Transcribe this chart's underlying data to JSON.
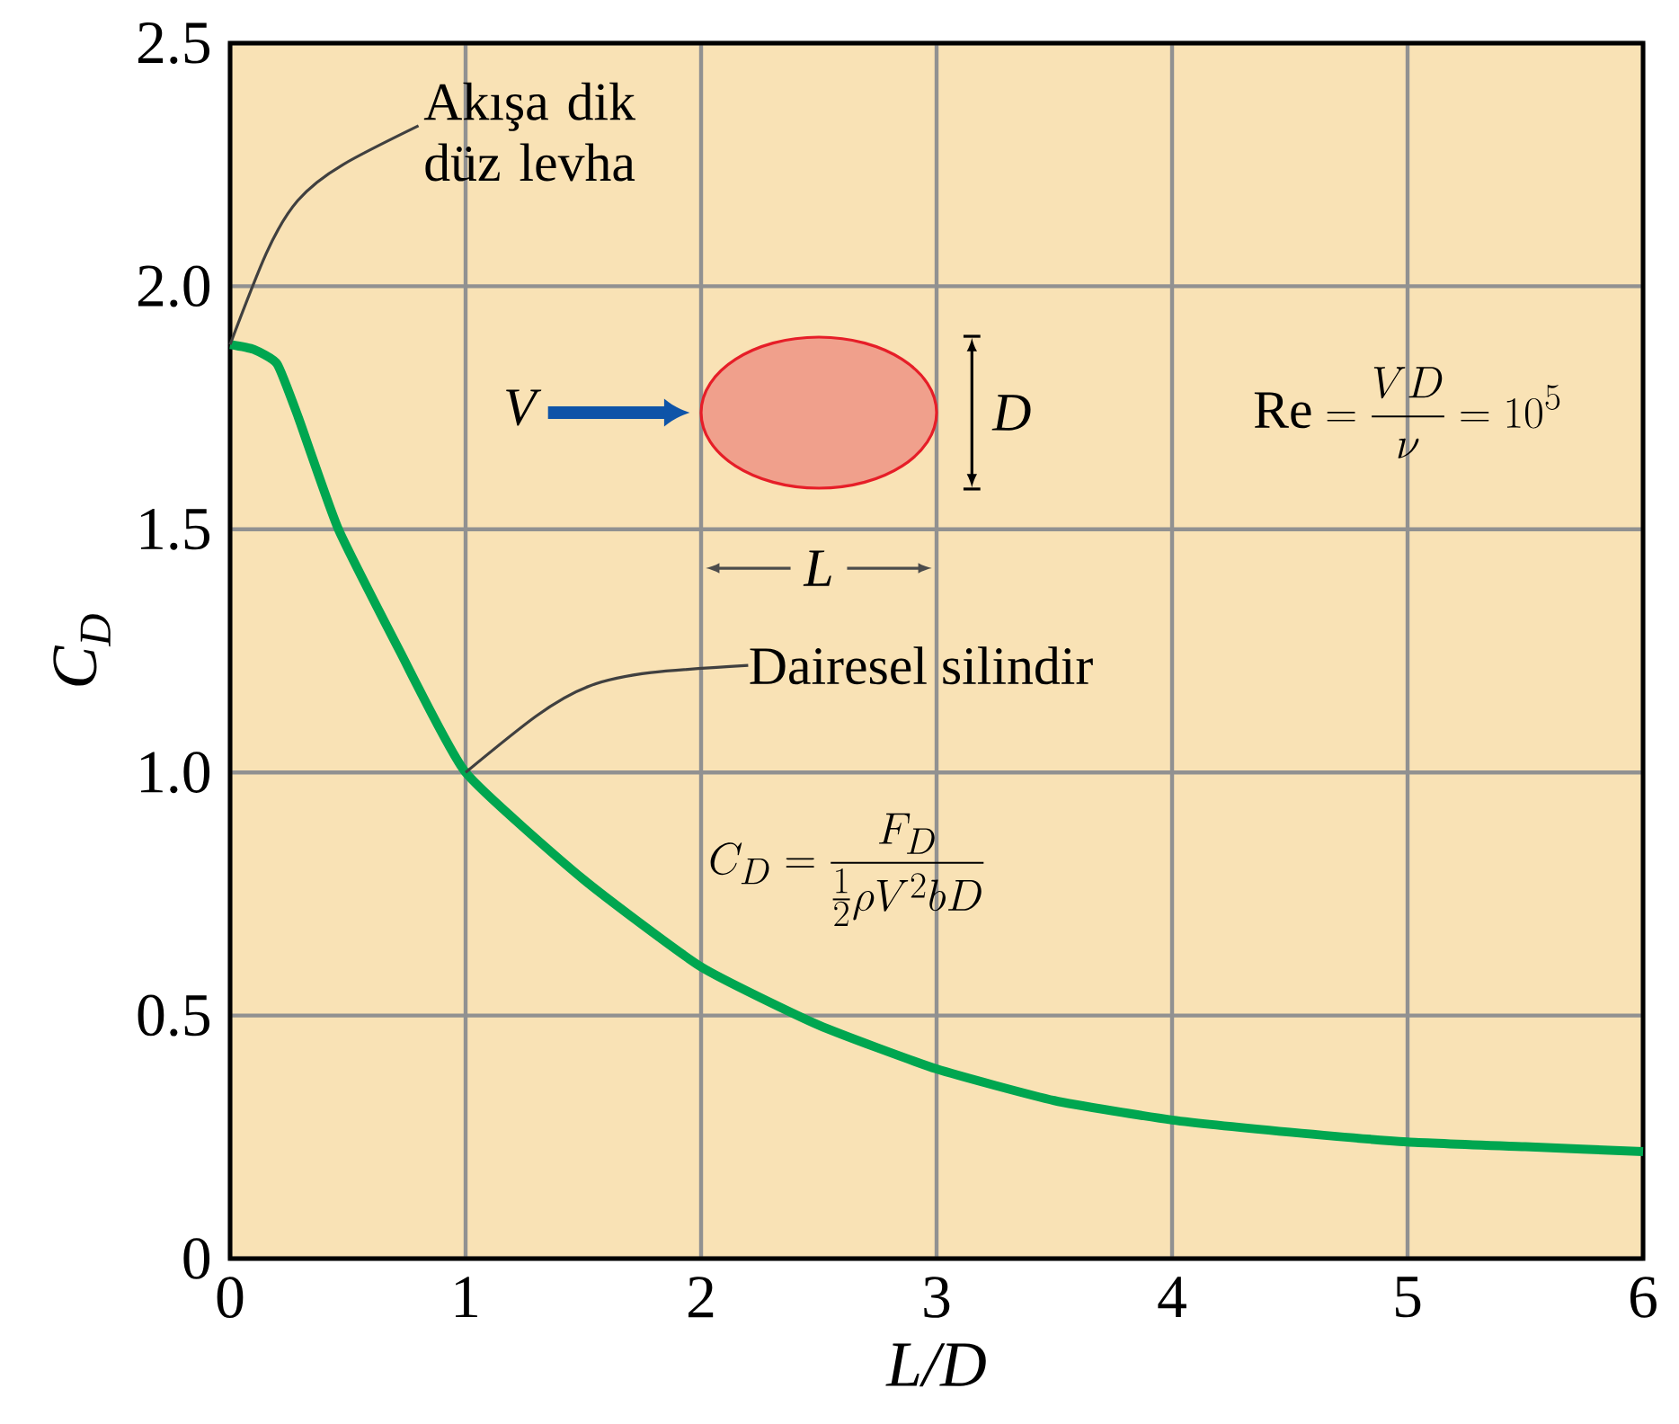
{
  "chart_data": {
    "type": "line",
    "xlabel": "L/D",
    "ylabel": "C$_{D}$",
    "x": [
      0,
      0.1,
      0.2,
      0.29,
      0.46,
      0.72,
      1.0,
      1.5,
      2.0,
      2.5,
      3.0,
      3.5,
      4.0,
      4.5,
      5.0,
      5.5,
      6.0
    ],
    "series": [
      {
        "color": "#00a650",
        "values": [
          1.88,
          1.87,
          1.84,
          1.73,
          1.5,
          1.25,
          1.0,
          0.78,
          0.6,
          0.48,
          0.39,
          0.325,
          0.285,
          0.26,
          0.24,
          0.23,
          0.22
        ]
      }
    ],
    "xlim": [
      0,
      6
    ],
    "xticks": [
      0,
      1,
      2,
      3,
      4,
      5,
      6
    ],
    "ylim": [
      0,
      2.5
    ],
    "yticks": [
      0,
      {
        "value": 0.5,
        "label": "0.5"
      },
      {
        "value": 1,
        "label": "1.0"
      },
      {
        "value": 1.5,
        "label": "1.5"
      },
      {
        "value": 2,
        "label": "2.0"
      },
      {
        "value": 2.5,
        "label": "2.5"
      }
    ],
    "grid": true,
    "marker": "none",
    "line_style": "solid",
    "annotations": [
      {
        "text": "Akışa dik düz levha",
        "x": 0,
        "y": 1.88
      },
      {
        "text": "Dairesel silindir",
        "x": 1,
        "y": 1.0
      },
      "C_D = \\frac{F_D}{\\frac{1}{2}\\rho V^2 bD}",
      "\\mathrm{Re} = \\frac{VD}{\\nu} = 10^5",
      "V",
      "D",
      "L"
    ]
  }
}
